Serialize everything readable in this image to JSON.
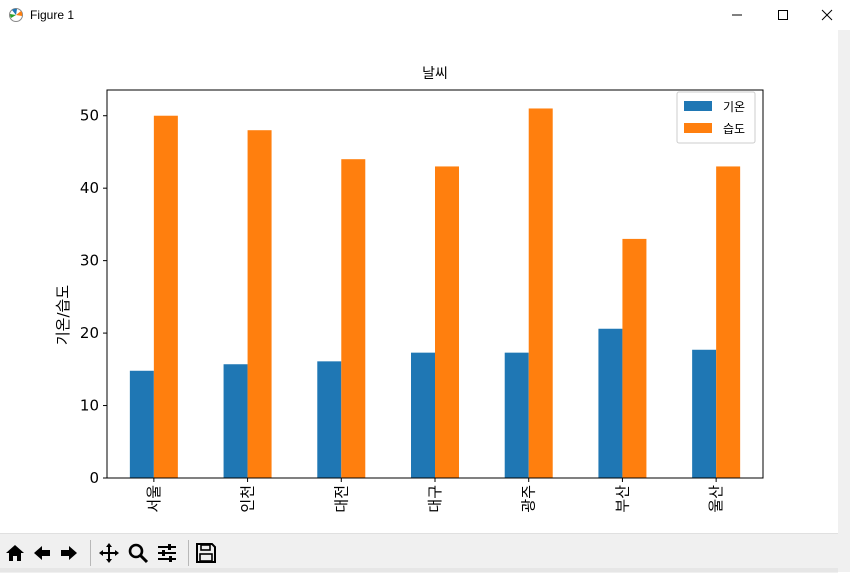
{
  "window": {
    "title": "Figure 1"
  },
  "toolbar": {
    "buttons": [
      "home-icon",
      "back-icon",
      "forward-icon",
      "pan-icon",
      "zoom-icon",
      "configure-subplots-icon",
      "save-icon"
    ]
  },
  "chart_data": {
    "type": "bar",
    "title": "날씨",
    "xlabel": "",
    "ylabel": "기온/습도",
    "categories": [
      "서울",
      "인천",
      "대전",
      "대구",
      "광주",
      "부산",
      "울산"
    ],
    "series": [
      {
        "name": "기온",
        "color": "#1f77b4",
        "values": [
          14.8,
          15.7,
          16.1,
          17.3,
          17.3,
          20.6,
          17.7
        ]
      },
      {
        "name": "습도",
        "color": "#ff7f0e",
        "values": [
          50,
          48,
          44,
          43,
          51,
          33,
          43
        ]
      }
    ],
    "ylim": [
      0,
      53.55
    ],
    "yticks": [
      0,
      10,
      20,
      30,
      40,
      50
    ],
    "legend": "top-right",
    "grid": false
  }
}
